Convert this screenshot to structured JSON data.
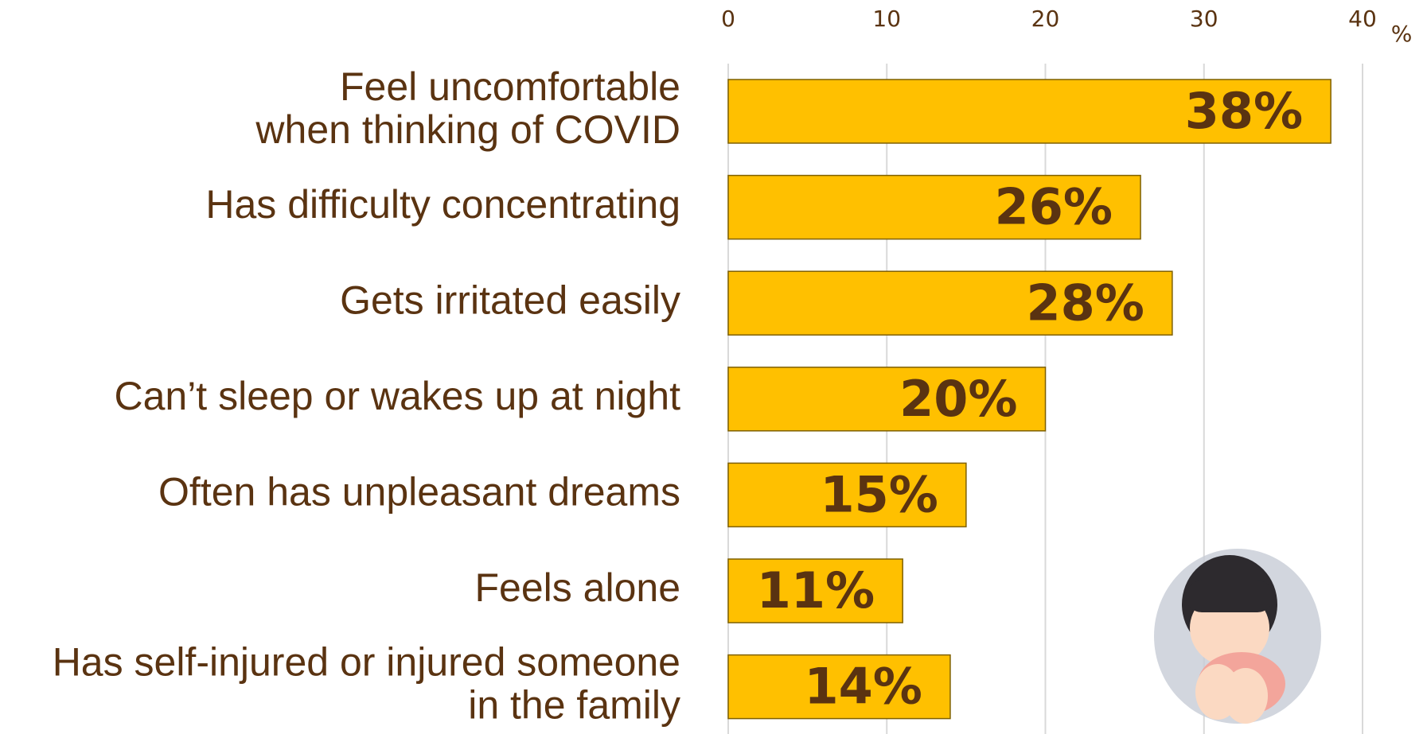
{
  "chart_data": {
    "type": "bar",
    "orientation": "horizontal",
    "categories": [
      "Feel uncomfortable\nwhen thinking of COVID",
      "Has difficulty concentrating",
      "Gets irritated easily",
      "Can’t sleep or wakes up at night",
      "Often has unpleasant dreams",
      "Feels alone",
      "Has self-injured or injured someone\nin the family"
    ],
    "values": [
      38,
      26,
      28,
      20,
      15,
      11,
      14
    ],
    "value_labels": [
      "38%",
      "26%",
      "28%",
      "20%",
      "15%",
      "11%",
      "14%"
    ],
    "color": "#ffc000",
    "x_label": "%",
    "xlim": [
      0,
      40
    ],
    "xticks": [
      0,
      10,
      20,
      30,
      40
    ],
    "grid": true
  }
}
